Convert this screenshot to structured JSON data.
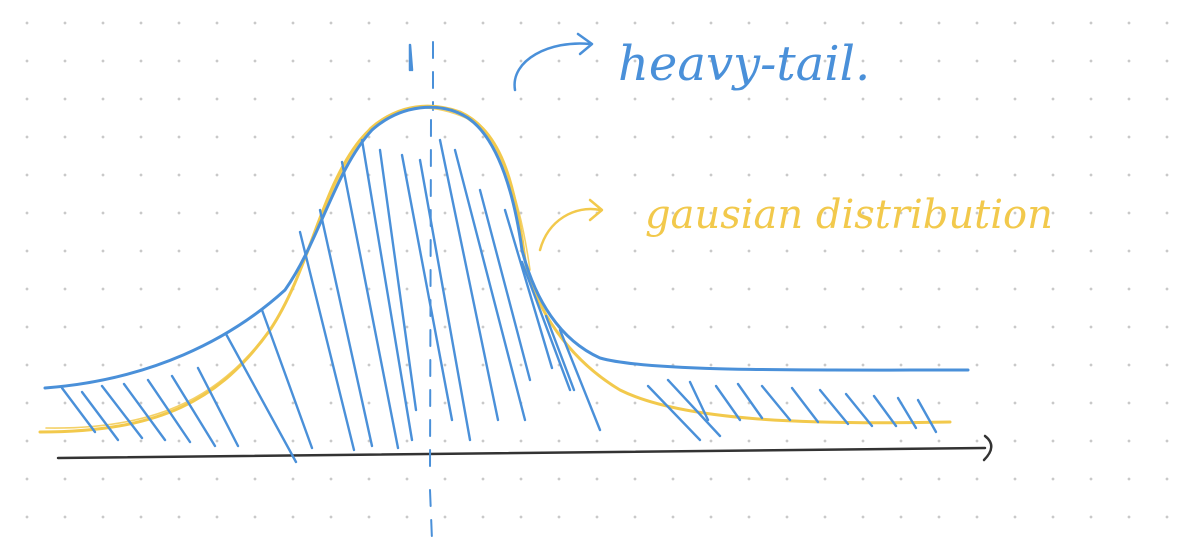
{
  "annotations": {
    "heavy_tail": "heavy-tail.",
    "gaussian": "gausian distribution"
  },
  "colors": {
    "background": "#ffffff",
    "grid_dots": "#c9c9c9",
    "heavy_tail_blue": "#4a90d9",
    "gaussian_yellow": "#f2c94c",
    "axis": "#333333"
  }
}
